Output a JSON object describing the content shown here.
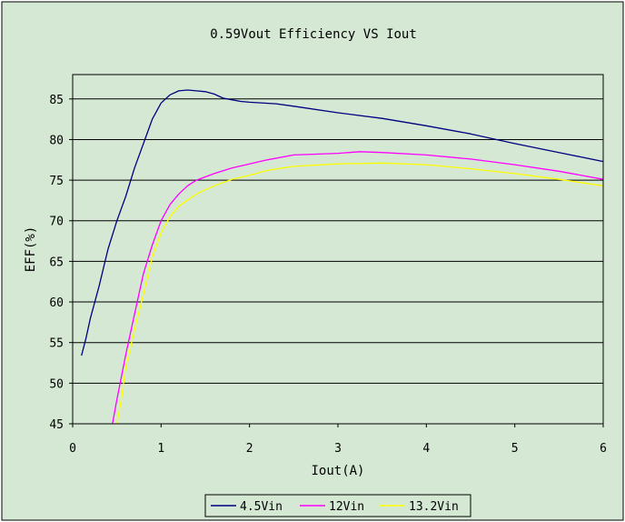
{
  "colors": {
    "chart_bg": "#d4e8d4",
    "plot_bg": "#d4e8d4",
    "border": "#000000",
    "grid": "#000000",
    "series_45": "#000080",
    "series_12": "#ff00ff",
    "series_132": "#ffff00"
  },
  "chart_data": {
    "type": "line",
    "title": "0.59Vout Efficiency VS Iout",
    "xlabel": "Iout(A)",
    "ylabel": "EFF(%)",
    "xlim": [
      0,
      6
    ],
    "ylim": [
      45,
      88
    ],
    "xticks": [
      "0",
      "1",
      "2",
      "3",
      "4",
      "5",
      "6"
    ],
    "yticks": [
      "45",
      "50",
      "55",
      "60",
      "65",
      "70",
      "75",
      "80",
      "85"
    ],
    "grid": "horizontal",
    "legend_position": "bottom-center",
    "series": [
      {
        "name": "4.5Vin",
        "color": "#000080",
        "points": [
          [
            0.1,
            53.4
          ],
          [
            0.15,
            55.5
          ],
          [
            0.2,
            58.0
          ],
          [
            0.3,
            62.0
          ],
          [
            0.4,
            66.5
          ],
          [
            0.5,
            70.0
          ],
          [
            0.6,
            73.0
          ],
          [
            0.7,
            76.5
          ],
          [
            0.8,
            79.5
          ],
          [
            0.9,
            82.5
          ],
          [
            1.0,
            84.5
          ],
          [
            1.1,
            85.5
          ],
          [
            1.2,
            86.0
          ],
          [
            1.3,
            86.1
          ],
          [
            1.4,
            86.0
          ],
          [
            1.5,
            85.9
          ],
          [
            1.6,
            85.6
          ],
          [
            1.7,
            85.1
          ],
          [
            1.8,
            84.9
          ],
          [
            1.9,
            84.7
          ],
          [
            2.0,
            84.6
          ],
          [
            2.3,
            84.4
          ],
          [
            2.5,
            84.1
          ],
          [
            3.0,
            83.3
          ],
          [
            3.5,
            82.6
          ],
          [
            4.0,
            81.7
          ],
          [
            4.5,
            80.7
          ],
          [
            5.0,
            79.5
          ],
          [
            5.5,
            78.4
          ],
          [
            6.0,
            77.3
          ]
        ]
      },
      {
        "name": "12Vin",
        "color": "#ff00ff",
        "points": [
          [
            0.45,
            45.0
          ],
          [
            0.5,
            48.0
          ],
          [
            0.6,
            53.5
          ],
          [
            0.7,
            58.5
          ],
          [
            0.8,
            63.5
          ],
          [
            0.9,
            67.0
          ],
          [
            1.0,
            70.0
          ],
          [
            1.1,
            72.0
          ],
          [
            1.2,
            73.3
          ],
          [
            1.3,
            74.3
          ],
          [
            1.4,
            75.0
          ],
          [
            1.6,
            75.8
          ],
          [
            1.8,
            76.5
          ],
          [
            2.0,
            77.0
          ],
          [
            2.2,
            77.5
          ],
          [
            2.5,
            78.1
          ],
          [
            3.0,
            78.3
          ],
          [
            3.25,
            78.5
          ],
          [
            3.5,
            78.4
          ],
          [
            4.0,
            78.1
          ],
          [
            4.5,
            77.6
          ],
          [
            5.0,
            76.9
          ],
          [
            5.5,
            76.1
          ],
          [
            6.0,
            75.1
          ]
        ]
      },
      {
        "name": "13.2Vin",
        "color": "#ffff00",
        "points": [
          [
            0.5,
            45.0
          ],
          [
            0.55,
            48.0
          ],
          [
            0.6,
            52.0
          ],
          [
            0.7,
            56.5
          ],
          [
            0.8,
            61.0
          ],
          [
            0.9,
            65.5
          ],
          [
            1.0,
            68.5
          ],
          [
            1.1,
            70.5
          ],
          [
            1.2,
            71.8
          ],
          [
            1.4,
            73.3
          ],
          [
            1.6,
            74.3
          ],
          [
            1.8,
            75.1
          ],
          [
            2.0,
            75.6
          ],
          [
            2.2,
            76.2
          ],
          [
            2.5,
            76.7
          ],
          [
            3.0,
            77.0
          ],
          [
            3.5,
            77.1
          ],
          [
            4.0,
            76.9
          ],
          [
            4.5,
            76.4
          ],
          [
            5.0,
            75.8
          ],
          [
            5.5,
            75.1
          ],
          [
            6.0,
            74.3
          ]
        ]
      }
    ]
  }
}
